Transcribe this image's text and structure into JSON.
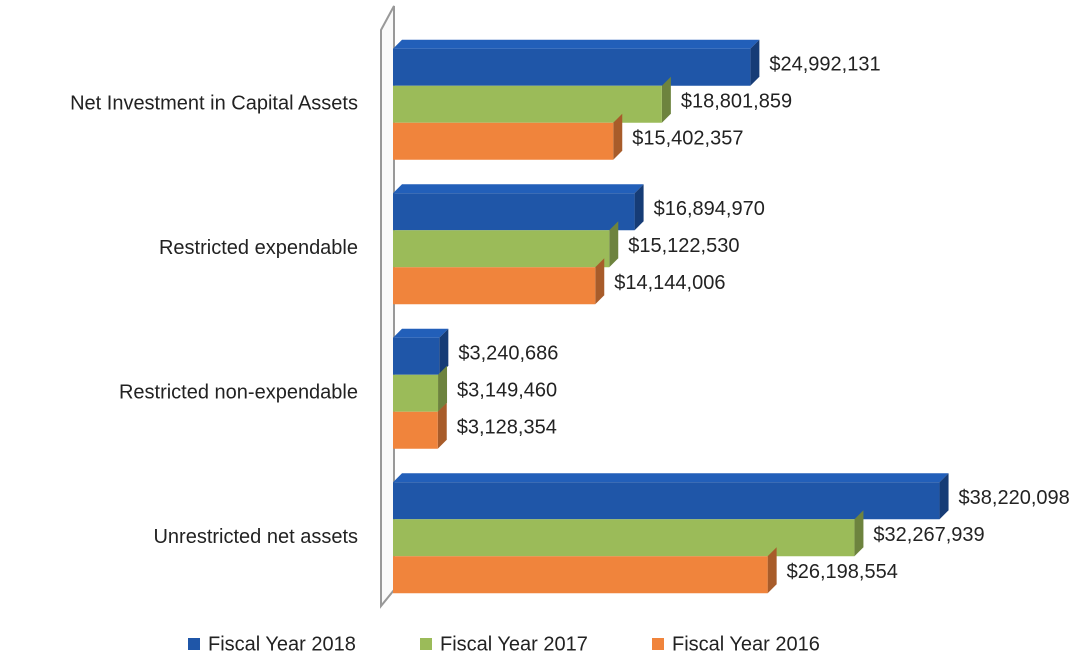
{
  "chart_data": {
    "type": "hbar",
    "categories": [
      "Net Investment in Capital Assets",
      "Restricted expendable",
      "Restricted non-expendable",
      "Unrestricted net assets"
    ],
    "series": [
      {
        "name": "Fiscal Year 2018",
        "color": "#1f56a8",
        "values": [
          24992131,
          16894970,
          3240686,
          38220098
        ],
        "value_labels": [
          "$24,992,131",
          "$16,894,970",
          "$3,240,686",
          "$38,220,098"
        ]
      },
      {
        "name": "Fiscal Year 2017",
        "color": "#9bbb59",
        "values": [
          18801859,
          15122530,
          3149460,
          32267939
        ],
        "value_labels": [
          "$18,801,859",
          "$15,122,530",
          "$3,149,460",
          "$32,267,939"
        ]
      },
      {
        "name": "Fiscal Year 2016",
        "color": "#f0843c",
        "values": [
          15402357,
          14144006,
          3128354,
          26198554
        ],
        "value_labels": [
          "$15,402,357",
          "$14,144,006",
          "$3,128,354",
          "$26,198,554"
        ]
      }
    ],
    "xlim": [
      0,
      40000000
    ],
    "legend": "bottom"
  }
}
